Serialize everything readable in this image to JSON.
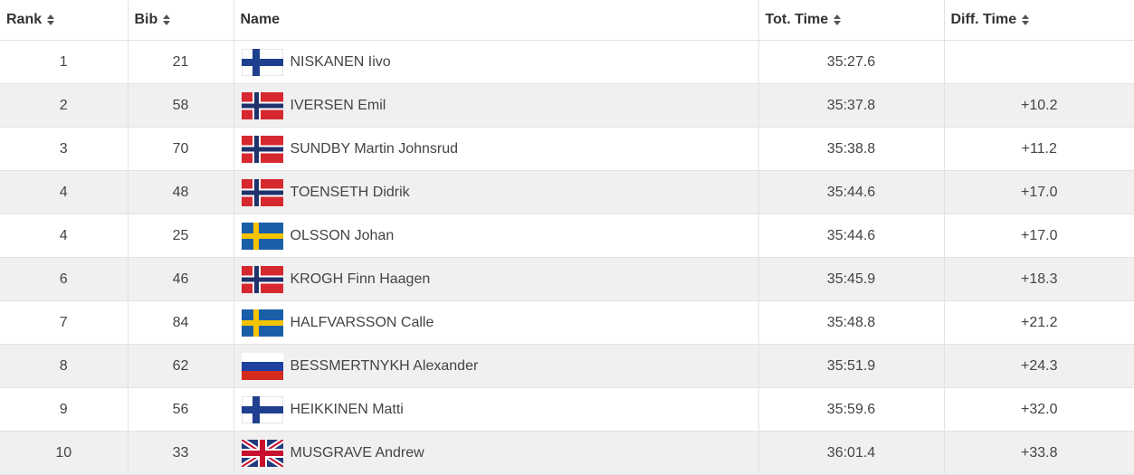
{
  "table": {
    "headers": [
      "Rank",
      "Bib",
      "Name",
      "Tot. Time",
      "Diff. Time"
    ],
    "rows": [
      {
        "rank": 1,
        "bib": 21,
        "name": "NISKANEN Iivo",
        "time": "35:27.6"
      },
      {
        "rank": 2,
        "bib": 58,
        "name": "IVERSEN Emil",
        "time": "35:37.8",
        "diff": "+10.2"
      },
      {
        "rank": 3,
        "bib": 70,
        "name": "SUNDBY Martin Johnsrud",
        "time": "35:38.8",
        "diff": "+11.2"
      },
      {
        "rank": 4,
        "bib": 48,
        "name": "TOENSETH Didrik",
        "time": "35:44.6",
        "diff": "+17.0"
      },
      {
        "rank": 4,
        "bib": 25,
        "name": "OLSSON Johan",
        "time": "35:44.6",
        "diff": "+17.0"
      },
      {
        "rank": 6,
        "bib": 46,
        "name": "KROGH Finn Haagen",
        "time": "35:45.9",
        "diff": "+18.3"
      },
      {
        "rank": 7,
        "bib": 84,
        "name": "HALFVARSSON Calle",
        "time": "35:48.8",
        "diff": "+21.2"
      },
      {
        "rank": 8,
        "bib": 62,
        "name": "BESSMERTNYKH Alexander",
        "time": "35:51.9",
        "diff": "+24.3"
      },
      {
        "rank": 9,
        "bib": 56,
        "name": "HEIKKINEN Matti",
        "time": "35:59.6",
        "diff": "+32.0"
      },
      {
        "rank": 10,
        "bib": 33,
        "name": "MUSGRAVE Andrew",
        "time": "36:01.4",
        "diff": "+33.8"
      }
    ]
  }
}
